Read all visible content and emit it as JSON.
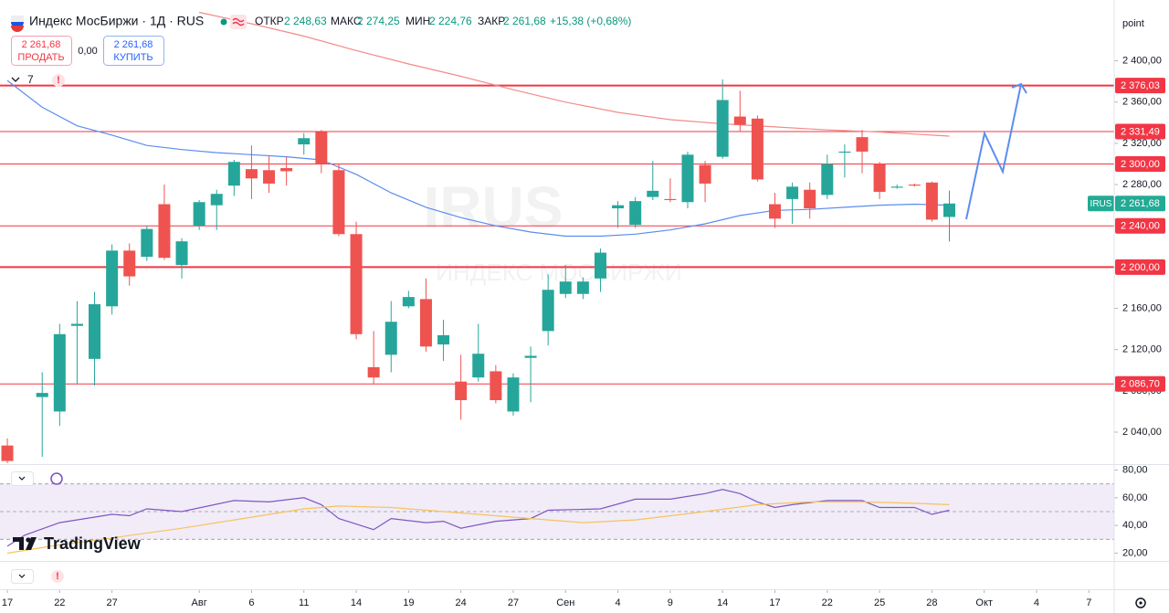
{
  "toolbar": {
    "title": "Индекс МосБиржи · 1Д · RUS",
    "ohlc": [
      {
        "label": "ОТКР",
        "value": "2 248,63"
      },
      {
        "label": "МАКС",
        "value": "2 274,25"
      },
      {
        "label": "МИН",
        "value": "2 224,76"
      },
      {
        "label": "ЗАКР",
        "value": "2 261,68"
      }
    ],
    "change": "+15,38 (+0,68%)",
    "sell_price": "2 261,68",
    "sell": "ПРОДАТЬ",
    "spread": "0,00",
    "buy_price": "2 261,68",
    "buy": "КУПИТЬ",
    "indicators": "7",
    "unit": "point",
    "logo": "TradingView"
  },
  "chart_data": [
    {
      "type": "candlestick",
      "watermark": [
        "IRUS",
        "ИНДЕКС МОСБИРЖИ"
      ],
      "up_color": "#26a69a",
      "down_color": "#ef5350",
      "xlim": [
        -0.42,
        63.45
      ],
      "ylim": [
        2009,
        2459
      ],
      "x": [
        0,
        2,
        3,
        4,
        5,
        6,
        7,
        8,
        9,
        10,
        11,
        12,
        13,
        14,
        15,
        16,
        17,
        18,
        19,
        20,
        21,
        22,
        23,
        24,
        25,
        26,
        27,
        28,
        29,
        30,
        31,
        32,
        33,
        34,
        35,
        36,
        37,
        38,
        39,
        40,
        41,
        42,
        43,
        44,
        45,
        46,
        47,
        48,
        49,
        50,
        51,
        52,
        53,
        54
      ],
      "open": [
        2027,
        2074,
        2060,
        2143,
        2111,
        2162,
        2216,
        2210,
        2261,
        2202,
        2240,
        2260,
        2279,
        2295,
        2294,
        2296,
        2319,
        2331,
        2294,
        2232,
        2103,
        2115,
        2162,
        2169,
        2125,
        2089,
        2093,
        2099,
        2060,
        2112,
        2138,
        2174,
        2174,
        2189,
        2257,
        2241,
        2268,
        2266,
        2263,
        2299,
        2307,
        2346,
        2344,
        2261,
        2266,
        2275,
        2270,
        2311,
        2326,
        2300,
        2277,
        2280,
        2282,
        2248.63
      ],
      "high": [
        2034,
        2098,
        2145,
        2167,
        2176,
        2222,
        2223,
        2240,
        2280,
        2228,
        2265,
        2275,
        2304,
        2318,
        2308,
        2307,
        2330,
        2333,
        2300,
        2244,
        2138,
        2167,
        2177,
        2189,
        2149,
        2115,
        2145,
        2105,
        2097,
        2123,
        2193,
        2202,
        2190,
        2218,
        2264,
        2268,
        2303,
        2286,
        2312,
        2303,
        2382,
        2371,
        2347,
        2272,
        2282,
        2282,
        2309,
        2319,
        2333,
        2302,
        2280,
        2281,
        2283,
        2274.25
      ],
      "low": [
        2010,
        2016,
        2046,
        2087,
        2085,
        2154,
        2182,
        2206,
        2207,
        2189,
        2236,
        2236,
        2269,
        2266,
        2272,
        2279,
        2309,
        2291,
        2230,
        2130,
        2087,
        2098,
        2160,
        2118,
        2109,
        2052,
        2089,
        2068,
        2056,
        2069,
        2124,
        2170,
        2169,
        2176,
        2238,
        2238,
        2265,
        2263,
        2257,
        2263,
        2305,
        2331,
        2283,
        2238,
        2242,
        2247,
        2266,
        2287,
        2291,
        2266,
        2276,
        2278,
        2244,
        2224.76
      ],
      "close": [
        2012,
        2078,
        2135,
        2145,
        2164,
        2216,
        2191,
        2237,
        2209,
        2225,
        2263,
        2271,
        2302,
        2286,
        2281,
        2293,
        2325,
        2300,
        2232,
        2135,
        2093,
        2147,
        2171,
        2123,
        2134,
        2071,
        2116,
        2071,
        2093,
        2114,
        2178,
        2186,
        2186,
        2214,
        2260,
        2264,
        2274,
        2265,
        2309,
        2281,
        2362,
        2338,
        2285,
        2247,
        2278,
        2257,
        2300,
        2312,
        2312,
        2273,
        2278,
        2279,
        2246,
        2261.68
      ],
      "series": [
        {
          "color": "#5b8def",
          "x": [
            0,
            2,
            4,
            6,
            8,
            10,
            12,
            14,
            16,
            18,
            20,
            22,
            24,
            26,
            28,
            30,
            32,
            34,
            36,
            38,
            40,
            42,
            44,
            46,
            48,
            50,
            52,
            54
          ],
          "values": [
            2381,
            2355,
            2337,
            2328,
            2318,
            2314,
            2311,
            2309,
            2307,
            2304,
            2290,
            2272,
            2258,
            2248,
            2240,
            2234,
            2230,
            2230,
            2232,
            2236,
            2242,
            2250,
            2255,
            2256,
            2258,
            2260,
            2261,
            2260
          ]
        },
        {
          "color": "#f28b8b",
          "x": [
            11,
            14,
            17,
            20,
            23,
            26,
            29,
            32,
            35,
            38,
            41,
            44,
            47,
            50,
            54
          ],
          "values": [
            2447,
            2436,
            2424,
            2410,
            2397,
            2385,
            2372,
            2360,
            2350,
            2343,
            2339,
            2336,
            2333,
            2331,
            2327
          ]
        }
      ],
      "level_color": "#f23645",
      "levels": [
        {
          "value": 2376.03,
          "label": "2 376,03",
          "width": 2
        },
        {
          "value": 2331.49,
          "label": "2 331,49",
          "width": 1
        },
        {
          "value": 2300.0,
          "label": "2 300,00",
          "width": 1
        },
        {
          "value": 2240.0,
          "label": "2 240,00",
          "width": 1
        },
        {
          "value": 2200.0,
          "label": "2 200,00",
          "width": 2
        },
        {
          "value": 2086.7,
          "label": "2 086,70",
          "width": 1
        }
      ],
      "price_tag": {
        "name": "IRUS",
        "value": 2261.68,
        "label": "2 261,68",
        "color": "#22ab94"
      },
      "yticks": [
        {
          "value": 2400,
          "label": "2 400,00"
        },
        {
          "value": 2360,
          "label": "2 360,00"
        },
        {
          "value": 2320,
          "label": "2 320,00"
        },
        {
          "value": 2280,
          "label": "2 280,00"
        },
        {
          "value": 2240,
          "label": "2 240,00"
        },
        {
          "value": 2200,
          "label": "2 200,00"
        },
        {
          "value": 2160,
          "label": "2 160,00"
        },
        {
          "value": 2120,
          "label": "2 120,00"
        },
        {
          "value": 2080,
          "label": "2 080,00"
        },
        {
          "value": 2040,
          "label": "2 040,00"
        }
      ],
      "xticks": [
        {
          "value": 0,
          "label": "17"
        },
        {
          "value": 3,
          "label": "22"
        },
        {
          "value": 6,
          "label": "27"
        },
        {
          "value": 11,
          "label": "Авг"
        },
        {
          "value": 14,
          "label": "6"
        },
        {
          "value": 17,
          "label": "11"
        },
        {
          "value": 20,
          "label": "14"
        },
        {
          "value": 23,
          "label": "19"
        },
        {
          "value": 26,
          "label": "24"
        },
        {
          "value": 29,
          "label": "27"
        },
        {
          "value": 32,
          "label": "Сен"
        },
        {
          "value": 35,
          "label": "4"
        },
        {
          "value": 38,
          "label": "9"
        },
        {
          "value": 41,
          "label": "14"
        },
        {
          "value": 44,
          "label": "17"
        },
        {
          "value": 47,
          "label": "22"
        },
        {
          "value": 50,
          "label": "25"
        },
        {
          "value": 53,
          "label": "28"
        },
        {
          "value": 56,
          "label": "Окт"
        },
        {
          "value": 59,
          "label": "4"
        },
        {
          "value": 62,
          "label": "7"
        }
      ]
    },
    {
      "type": "line",
      "xlim": [
        -0.42,
        63.45
      ],
      "ylim": [
        17,
        83
      ],
      "band": [
        30,
        70
      ],
      "band_color": "#ede7f6",
      "midline": 50,
      "series": [
        {
          "color": "#7e57c2",
          "x": [
            0,
            1,
            3,
            6,
            7,
            8,
            10,
            13,
            15,
            17,
            18,
            19,
            21,
            22,
            24,
            25,
            26,
            28,
            30,
            31,
            34,
            36,
            38,
            40,
            41,
            42,
            43,
            44,
            45,
            47,
            49,
            50,
            52,
            53,
            54
          ],
          "values": [
            25,
            33,
            42,
            48,
            47,
            52,
            50,
            58,
            57,
            60,
            55,
            45,
            37,
            45,
            42,
            43,
            38,
            43,
            45,
            51,
            52,
            59,
            59,
            63,
            66,
            63,
            57,
            53,
            55,
            58,
            58,
            53,
            53,
            48,
            51
          ]
        },
        {
          "color": "#f7c35a",
          "x": [
            0,
            3,
            6,
            10,
            14,
            17,
            19,
            22,
            26,
            30,
            33,
            36,
            40,
            43,
            46,
            49,
            52,
            54
          ],
          "values": [
            20,
            26,
            31,
            38,
            46,
            52,
            54,
            53,
            49,
            45,
            42,
            44,
            50,
            55,
            57,
            57,
            56,
            55
          ]
        }
      ],
      "yticks": [
        {
          "value": 80,
          "label": "80,00"
        },
        {
          "value": 60,
          "label": "60,00"
        },
        {
          "value": 40,
          "label": "40,00"
        },
        {
          "value": 20,
          "label": "20,00"
        }
      ]
    }
  ]
}
